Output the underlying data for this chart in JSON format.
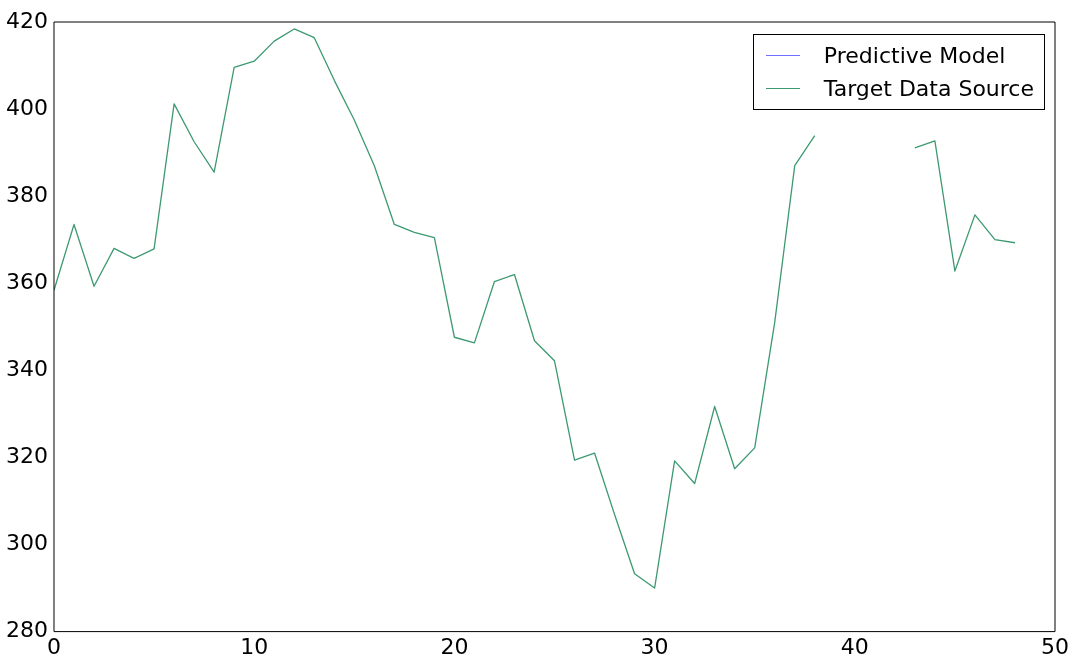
{
  "chart_data": {
    "type": "line",
    "x": [
      0,
      1,
      2,
      3,
      4,
      5,
      6,
      7,
      8,
      9,
      10,
      11,
      12,
      13,
      14,
      15,
      16,
      17,
      18,
      19,
      20,
      21,
      22,
      23,
      24,
      25,
      26,
      27,
      28,
      29,
      30,
      31,
      32,
      33,
      34,
      35,
      36,
      37,
      38,
      39,
      40,
      41,
      42,
      43,
      44,
      45,
      46,
      47,
      48
    ],
    "series": [
      {
        "name": "Predictive Model",
        "color": "#7070ff",
        "values": [
          null,
          null,
          null,
          null,
          null,
          null,
          null,
          null,
          null,
          null,
          null,
          null,
          null,
          null,
          null,
          null,
          null,
          null,
          null,
          null,
          null,
          null,
          null,
          null,
          null,
          null,
          null,
          null,
          null,
          null,
          null,
          null,
          null,
          null,
          null,
          null,
          null,
          null,
          null,
          null,
          null,
          null,
          null,
          null,
          null,
          null,
          null,
          null,
          null
        ]
      },
      {
        "name": "Target Data Source",
        "color": "#3d9970",
        "values": [
          358.4,
          373.5,
          359.3,
          368,
          365.7,
          367.9,
          401.2,
          392.5,
          385.5,
          409.6,
          411,
          415.6,
          418.4,
          416.4,
          406.6,
          397.5,
          387,
          373.5,
          371.7,
          370.5,
          347.6,
          346.3,
          360.4,
          362,
          346.8,
          342.2,
          319.4,
          321,
          306.9,
          293.3,
          290,
          319.2,
          314,
          331.7,
          317.4,
          322.2,
          351,
          387,
          393.9,
          null,
          null,
          null,
          null,
          391.1,
          392.7,
          362.8,
          375.7,
          370,
          369.3
        ]
      }
    ],
    "xlim": [
      0,
      50
    ],
    "xticks": [
      0,
      10,
      20,
      30,
      40,
      50
    ],
    "ylim": [
      280,
      420
    ],
    "yticks": [
      280,
      300,
      320,
      340,
      360,
      380,
      400,
      420
    ],
    "legend": "top right",
    "grid": false,
    "marker": "none",
    "line_style": "solid"
  }
}
